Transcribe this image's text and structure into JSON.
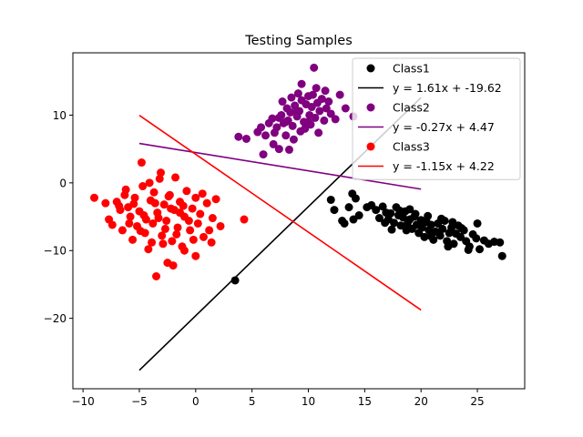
{
  "chart_data": {
    "type": "scatter",
    "title": "Testing Samples",
    "xlabel": "",
    "ylabel": "",
    "xlim": [
      -10.9,
      29.2
    ],
    "ylim": [
      -30.4,
      19.2
    ],
    "xticks": [
      -10,
      -5,
      0,
      5,
      10,
      15,
      20,
      25
    ],
    "yticks": [
      -20,
      -10,
      0,
      10
    ],
    "grid": false,
    "legend_position": "top-right",
    "series": [
      {
        "name": "Class1",
        "kind": "scatter",
        "color": "#000000",
        "points": [
          [
            3.5,
            -14.4
          ],
          [
            12.0,
            -2.5
          ],
          [
            12.3,
            -4.0
          ],
          [
            13.0,
            -5.6
          ],
          [
            13.2,
            -6.0
          ],
          [
            13.6,
            -3.6
          ],
          [
            13.9,
            -1.6
          ],
          [
            14.2,
            -2.3
          ],
          [
            14.0,
            -5.4
          ],
          [
            14.5,
            -4.8
          ],
          [
            15.2,
            -3.6
          ],
          [
            15.6,
            -3.3
          ],
          [
            16.0,
            -4.0
          ],
          [
            16.3,
            -5.2
          ],
          [
            16.6,
            -3.5
          ],
          [
            16.9,
            -4.4
          ],
          [
            17.1,
            -5.4
          ],
          [
            17.3,
            -4.5
          ],
          [
            17.6,
            -5.9
          ],
          [
            17.8,
            -3.6
          ],
          [
            18.0,
            -4.8
          ],
          [
            18.2,
            -6.3
          ],
          [
            18.4,
            -5.1
          ],
          [
            18.6,
            -4.2
          ],
          [
            18.8,
            -6.0
          ],
          [
            19.0,
            -5.4
          ],
          [
            19.2,
            -6.8
          ],
          [
            19.4,
            -5.0
          ],
          [
            19.6,
            -6.2
          ],
          [
            19.8,
            -7.4
          ],
          [
            20.0,
            -5.5
          ],
          [
            20.1,
            -6.6
          ],
          [
            20.3,
            -8.0
          ],
          [
            20.5,
            -5.8
          ],
          [
            20.7,
            -7.0
          ],
          [
            20.9,
            -6.2
          ],
          [
            21.1,
            -8.4
          ],
          [
            21.3,
            -7.2
          ],
          [
            21.5,
            -6.0
          ],
          [
            21.7,
            -7.8
          ],
          [
            21.9,
            -6.8
          ],
          [
            22.1,
            -5.6
          ],
          [
            22.3,
            -8.6
          ],
          [
            22.5,
            -7.4
          ],
          [
            22.7,
            -6.6
          ],
          [
            22.9,
            -9.0
          ],
          [
            23.1,
            -7.5
          ],
          [
            23.3,
            -6.3
          ],
          [
            23.5,
            -8.0
          ],
          [
            23.8,
            -7.0
          ],
          [
            24.0,
            -8.6
          ],
          [
            24.3,
            -9.4
          ],
          [
            24.6,
            -7.6
          ],
          [
            24.9,
            -8.2
          ],
          [
            25.2,
            -9.8
          ],
          [
            25.6,
            -8.5
          ],
          [
            26.0,
            -9.0
          ],
          [
            26.5,
            -8.7
          ],
          [
            27.0,
            -8.8
          ],
          [
            27.2,
            -10.8
          ],
          [
            18.1,
            -4.1
          ],
          [
            19.5,
            -4.6
          ],
          [
            20.6,
            -4.9
          ],
          [
            21.8,
            -5.3
          ],
          [
            22.8,
            -5.8
          ],
          [
            23.6,
            -6.7
          ],
          [
            16.8,
            -5.9
          ],
          [
            17.4,
            -6.9
          ],
          [
            19.0,
            -3.9
          ],
          [
            20.9,
            -7.9
          ],
          [
            22.4,
            -9.4
          ],
          [
            24.2,
            -9.9
          ],
          [
            25.0,
            -6.0
          ],
          [
            18.7,
            -7.0
          ],
          [
            19.9,
            -6.0
          ]
        ]
      },
      {
        "name": "y = 1.61x + -19.62",
        "kind": "line",
        "color": "#000000",
        "line": [
          [
            -5,
            -27.67
          ],
          [
            20,
            12.58
          ]
        ]
      },
      {
        "name": "Class2",
        "kind": "scatter",
        "color": "#800080",
        "points": [
          [
            3.8,
            6.8
          ],
          [
            4.5,
            6.5
          ],
          [
            5.5,
            7.5
          ],
          [
            5.8,
            8.2
          ],
          [
            6.0,
            4.2
          ],
          [
            6.2,
            7.0
          ],
          [
            6.5,
            8.8
          ],
          [
            6.8,
            9.5
          ],
          [
            7.0,
            7.4
          ],
          [
            7.2,
            8.2
          ],
          [
            7.4,
            9.6
          ],
          [
            7.6,
            10.0
          ],
          [
            7.8,
            8.8
          ],
          [
            8.0,
            7.0
          ],
          [
            8.1,
            11.0
          ],
          [
            8.2,
            9.2
          ],
          [
            8.4,
            10.4
          ],
          [
            8.5,
            12.6
          ],
          [
            8.6,
            8.4
          ],
          [
            8.8,
            11.4
          ],
          [
            9.0,
            9.8
          ],
          [
            9.1,
            13.2
          ],
          [
            9.2,
            10.6
          ],
          [
            9.3,
            7.6
          ],
          [
            9.4,
            12.2
          ],
          [
            9.6,
            9.0
          ],
          [
            9.8,
            11.6
          ],
          [
            10.0,
            12.8
          ],
          [
            10.1,
            10.0
          ],
          [
            10.2,
            8.6
          ],
          [
            10.3,
            11.2
          ],
          [
            10.4,
            13.0
          ],
          [
            10.5,
            17.0
          ],
          [
            10.6,
            9.6
          ],
          [
            10.8,
            11.8
          ],
          [
            11.0,
            10.6
          ],
          [
            11.2,
            12.4
          ],
          [
            11.4,
            9.2
          ],
          [
            11.6,
            11.0
          ],
          [
            11.8,
            12.0
          ],
          [
            12.0,
            10.2
          ],
          [
            12.4,
            9.4
          ],
          [
            12.8,
            13.0
          ],
          [
            13.3,
            11.0
          ],
          [
            14.0,
            9.8
          ],
          [
            7.4,
            5.0
          ],
          [
            8.7,
            6.4
          ],
          [
            9.7,
            8.0
          ],
          [
            10.9,
            7.4
          ],
          [
            8.3,
            4.9
          ],
          [
            6.9,
            5.7
          ],
          [
            11.5,
            13.6
          ],
          [
            9.4,
            14.6
          ],
          [
            10.7,
            14.0
          ],
          [
            7.7,
            12.0
          ],
          [
            9.0,
            10.5
          ],
          [
            8.0,
            9.0
          ],
          [
            10.0,
            9.0
          ]
        ]
      },
      {
        "name": "y = -0.27x + 4.47",
        "kind": "line",
        "color": "#800080",
        "line": [
          [
            -5,
            5.82
          ],
          [
            20,
            -0.93
          ]
        ]
      },
      {
        "name": "Class3",
        "kind": "scatter",
        "color": "#ff0000",
        "points": [
          [
            -9.0,
            -2.2
          ],
          [
            -8.0,
            -3.0
          ],
          [
            -7.7,
            -5.4
          ],
          [
            -7.4,
            -6.2
          ],
          [
            -7.0,
            -2.8
          ],
          [
            -6.7,
            -4.0
          ],
          [
            -6.5,
            -7.0
          ],
          [
            -6.2,
            -1.0
          ],
          [
            -6.0,
            -3.6
          ],
          [
            -5.8,
            -5.0
          ],
          [
            -5.6,
            -8.4
          ],
          [
            -5.4,
            -2.2
          ],
          [
            -5.2,
            -6.4
          ],
          [
            -5.0,
            -4.2
          ],
          [
            -4.8,
            3.0
          ],
          [
            -4.7,
            -0.5
          ],
          [
            -4.5,
            -7.4
          ],
          [
            -4.4,
            -5.4
          ],
          [
            -4.2,
            -9.8
          ],
          [
            -4.0,
            -2.6
          ],
          [
            -3.8,
            -6.0
          ],
          [
            -3.7,
            -1.4
          ],
          [
            -3.5,
            -13.8
          ],
          [
            -3.4,
            -4.4
          ],
          [
            -3.2,
            0.6
          ],
          [
            -3.0,
            -7.8
          ],
          [
            -2.8,
            -3.2
          ],
          [
            -2.6,
            -5.6
          ],
          [
            -2.5,
            -11.8
          ],
          [
            -2.3,
            -1.8
          ],
          [
            -2.1,
            -8.6
          ],
          [
            -1.9,
            -4.0
          ],
          [
            -1.8,
            0.8
          ],
          [
            -1.6,
            -6.6
          ],
          [
            -1.4,
            -2.8
          ],
          [
            -1.2,
            -9.4
          ],
          [
            -1.0,
            -5.0
          ],
          [
            -0.8,
            -1.2
          ],
          [
            -0.5,
            -7.0
          ],
          [
            -0.3,
            -3.8
          ],
          [
            0.0,
            -10.8
          ],
          [
            0.0,
            -2.2
          ],
          [
            0.2,
            -6.0
          ],
          [
            0.4,
            -4.6
          ],
          [
            0.7,
            -8.0
          ],
          [
            1.0,
            -3.0
          ],
          [
            1.2,
            -7.0
          ],
          [
            1.5,
            -5.2
          ],
          [
            1.8,
            -2.4
          ],
          [
            2.2,
            -6.4
          ],
          [
            4.3,
            -5.4
          ],
          [
            -2.9,
            -9.0
          ],
          [
            -3.9,
            -8.8
          ],
          [
            -4.9,
            -7.1
          ],
          [
            -5.5,
            -3.1
          ],
          [
            -6.3,
            -1.8
          ],
          [
            -1.0,
            -10.0
          ],
          [
            -2.0,
            -12.2
          ],
          [
            -3.1,
            1.5
          ],
          [
            -4.1,
            0.0
          ],
          [
            -2.2,
            -3.8
          ],
          [
            -1.4,
            -4.4
          ],
          [
            -0.6,
            -5.6
          ],
          [
            -3.6,
            -3.0
          ],
          [
            -4.6,
            -4.8
          ],
          [
            -2.7,
            -6.8
          ],
          [
            -1.7,
            -7.6
          ],
          [
            0.6,
            -1.6
          ],
          [
            1.4,
            -8.8
          ],
          [
            -5.9,
            -6.0
          ],
          [
            -6.8,
            -3.4
          ],
          [
            -3.3,
            -5.2
          ],
          [
            -2.4,
            -2.0
          ],
          [
            -1.1,
            -3.4
          ],
          [
            -0.2,
            -8.4
          ]
        ]
      },
      {
        "name": "y = -1.15x + 4.22",
        "kind": "line",
        "color": "#ff0000",
        "line": [
          [
            -5,
            9.97
          ],
          [
            20,
            -18.78
          ]
        ]
      }
    ]
  }
}
